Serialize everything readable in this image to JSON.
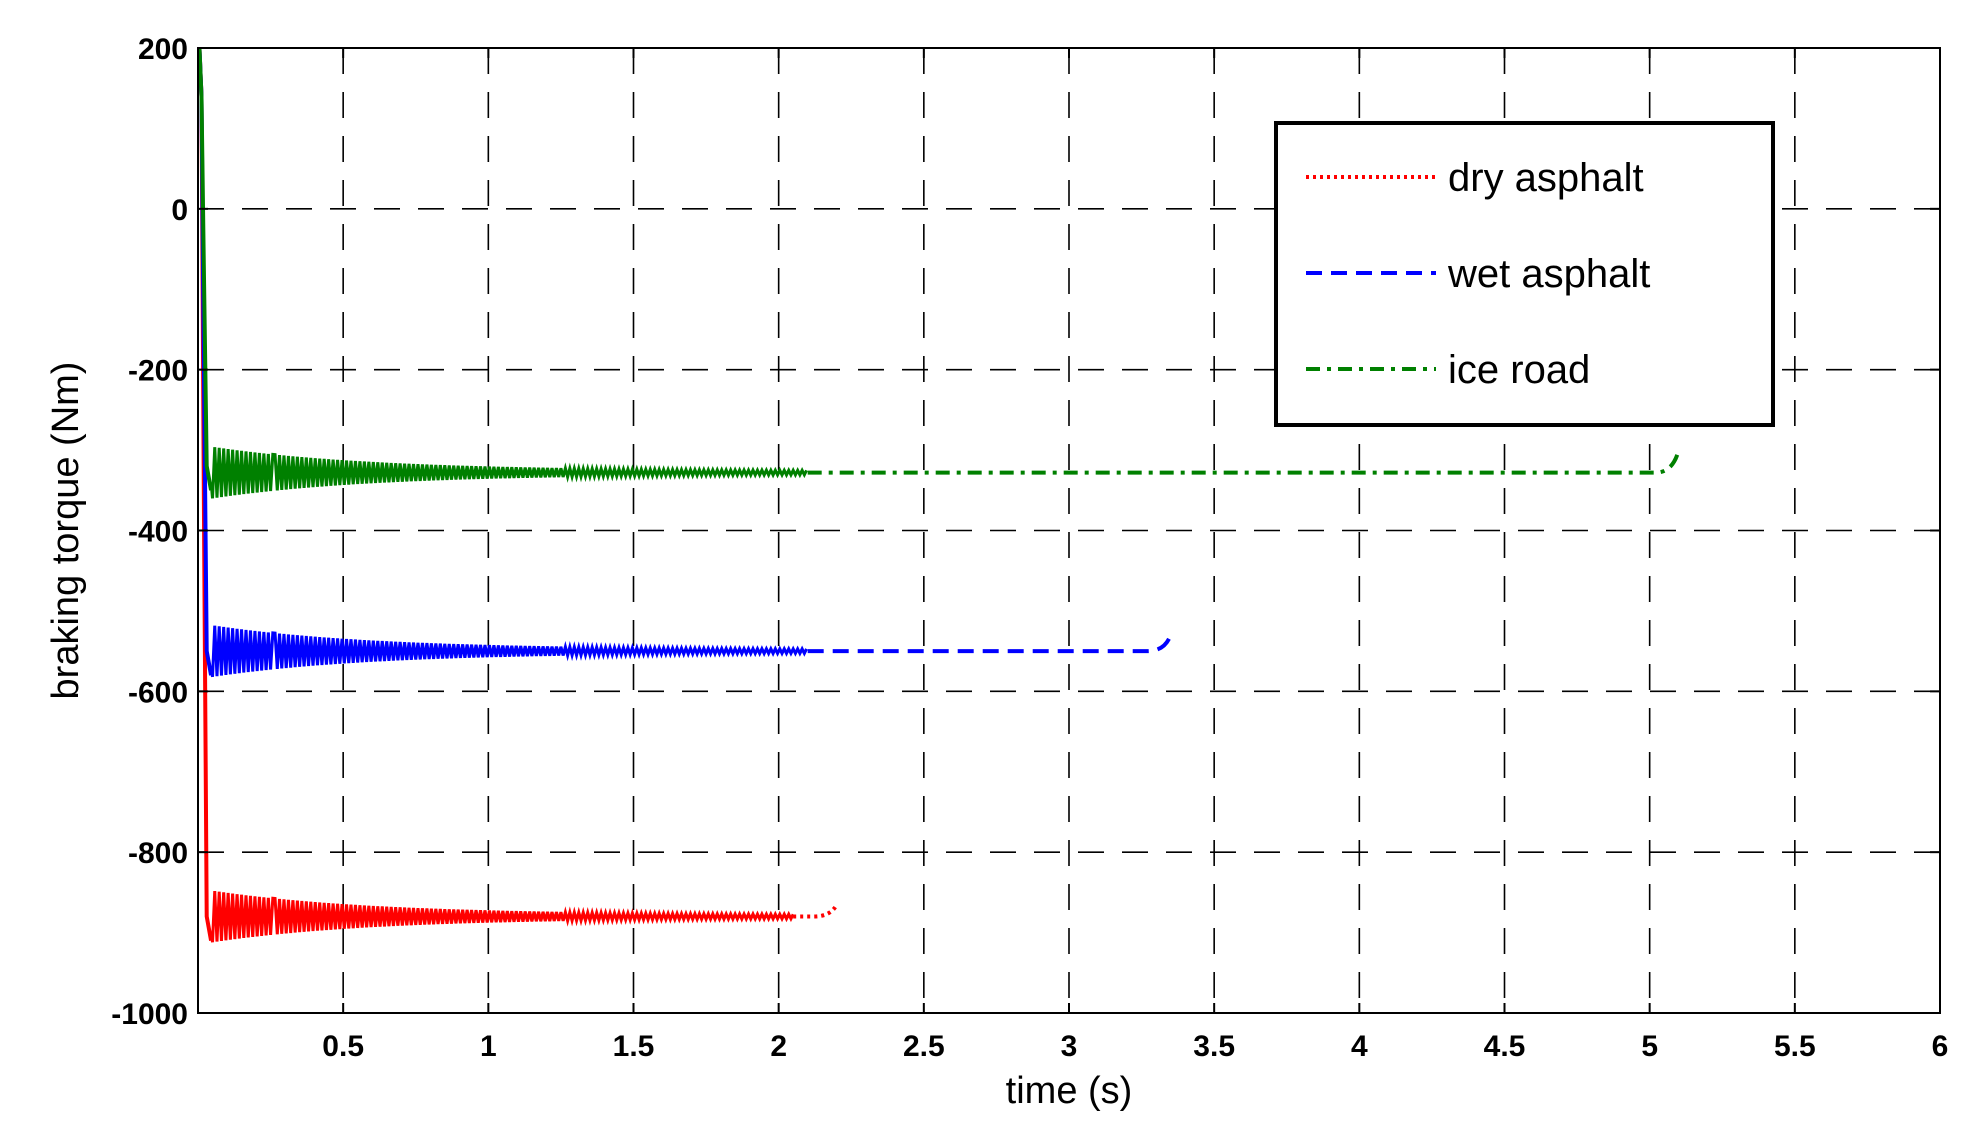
{
  "chart_data": {
    "type": "line",
    "title": "",
    "xlabel": "time (s)",
    "ylabel": "braking torque (Nm)",
    "xlim": [
      0,
      6
    ],
    "ylim": [
      -1000,
      200
    ],
    "grid": true,
    "legend_position": "top-right",
    "xticks": [
      0.5,
      1,
      1.5,
      2,
      2.5,
      3,
      3.5,
      4,
      4.5,
      5,
      5.5,
      6
    ],
    "xtick_labels": [
      "0.5",
      "1",
      "1.5",
      "2",
      "2.5",
      "3",
      "3.5",
      "4",
      "4.5",
      "5",
      "5.5",
      "6"
    ],
    "yticks": [
      200,
      0,
      -200,
      -400,
      -600,
      -800,
      -1000
    ],
    "ytick_labels": [
      "200",
      "0",
      "-200",
      "-400",
      "-600",
      "-800",
      "-1000"
    ],
    "series": [
      {
        "name": "dry asphalt",
        "color": "#ff0000",
        "line_style": "dotted",
        "spike_from": 200,
        "initial_drop": -900,
        "steady": -880,
        "osc_amplitude_initial": 30,
        "end_time": 2.2,
        "end_value": -865
      },
      {
        "name": "wet asphalt",
        "color": "#0000ff",
        "line_style": "dashed",
        "spike_from": 200,
        "initial_drop": -570,
        "steady": -550,
        "osc_amplitude_initial": 30,
        "end_time": 3.35,
        "end_value": -530
      },
      {
        "name": "ice road",
        "color": "#008000",
        "line_style": "dashdot",
        "spike_from": 200,
        "initial_drop": -340,
        "steady": -328,
        "osc_amplitude_initial": 30,
        "end_time": 5.1,
        "end_value": -300
      }
    ]
  }
}
